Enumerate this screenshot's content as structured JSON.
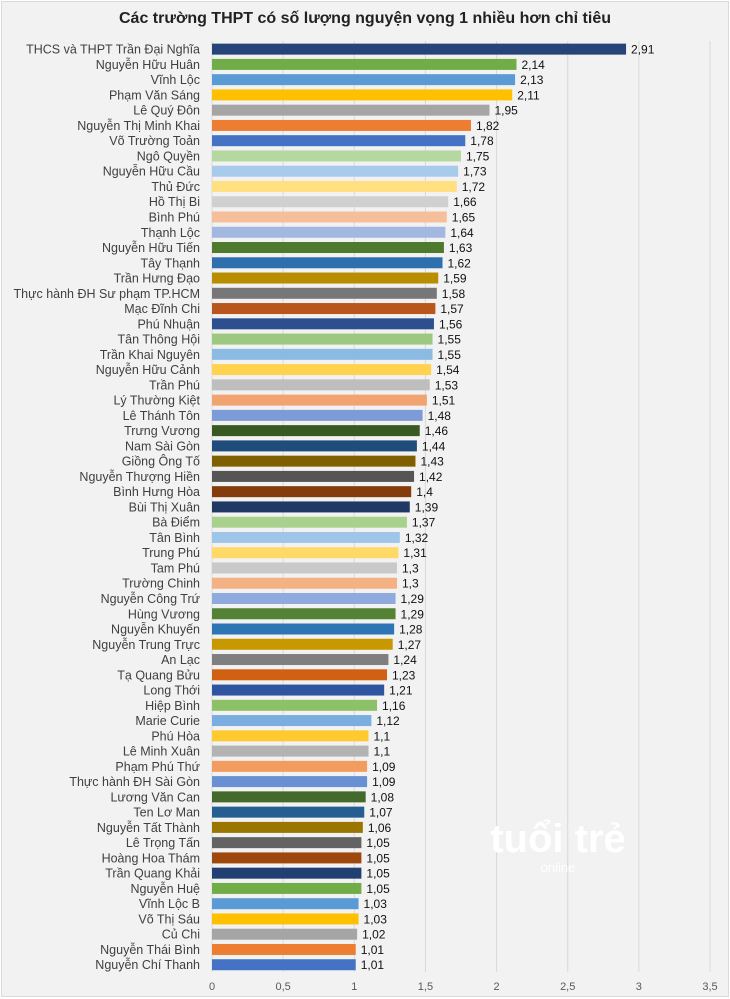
{
  "chart_data": {
    "type": "bar",
    "orientation": "horizontal",
    "title": "Các trường THPT có số lượng nguyện vọng 1 nhiều hơn chỉ tiêu",
    "xlabel": "",
    "ylabel": "",
    "xlim": [
      0,
      3.5
    ],
    "xticks": [
      "0",
      "0,5",
      "1",
      "1,5",
      "2",
      "2,5",
      "3",
      "3,5"
    ],
    "xtick_values": [
      0,
      0.5,
      1,
      1.5,
      2,
      2.5,
      3,
      3.5
    ],
    "grid": "vertical",
    "decimal_separator": ",",
    "categories": [
      "THCS và THPT Trần Đại Nghĩa",
      "Nguyễn Hữu Huân",
      "Vĩnh Lộc",
      "Phạm Văn Sáng",
      "Lê Quý Đôn",
      "Nguyễn Thị Minh Khai",
      "Võ Trường Toản",
      "Ngô Quyền",
      "Nguyễn Hữu Cầu",
      "Thủ Đức",
      "Hồ Thị Bi",
      "Bình Phú",
      "Thạnh Lộc",
      "Nguyễn Hữu Tiến",
      "Tây Thạnh",
      "Trần Hưng Đạo",
      "Thực hành ĐH Sư phạm TP.HCM",
      "Mạc Đĩnh Chi",
      "Phú Nhuận",
      "Tân Thông Hội",
      "Trần Khai Nguyên",
      "Nguyễn Hữu Cảnh",
      "Trần Phú",
      "Lý Thường Kiệt",
      "Lê Thánh Tôn",
      "Trưng Vương",
      "Nam Sài Gòn",
      "Giồng Ông Tố",
      "Nguyễn Thượng Hiền",
      "Bình Hưng Hòa",
      "Bùi Thị Xuân",
      "Bà Điểm",
      "Tân Bình",
      "Trung Phú",
      "Tam Phú",
      "Trường Chinh",
      "Nguyễn Công Trứ",
      "Hùng Vương",
      "Nguyễn Khuyến",
      "Nguyễn Trung Trực",
      "An Lạc",
      "Tạ Quang Bửu",
      "Long Thới",
      "Hiệp Bình",
      "Marie Curie",
      "Phú Hòa",
      "Lê Minh Xuân",
      "Phạm Phú Thứ",
      "Thực hành ĐH Sài Gòn",
      "Lương Văn Can",
      "Ten Lơ Man",
      "Nguyễn Tất Thành",
      "Lê Trọng Tấn",
      "Hoàng Hoa Thám",
      "Trần Quang Khải",
      "Nguyễn Huệ",
      "Vĩnh Lộc B",
      "Võ Thị Sáu",
      "Củ Chi",
      "Nguyễn Thái Bình",
      "Nguyễn Chí Thanh"
    ],
    "values": [
      2.91,
      2.14,
      2.13,
      2.11,
      1.95,
      1.82,
      1.78,
      1.75,
      1.73,
      1.72,
      1.66,
      1.65,
      1.64,
      1.63,
      1.62,
      1.59,
      1.58,
      1.57,
      1.56,
      1.55,
      1.55,
      1.54,
      1.53,
      1.51,
      1.48,
      1.46,
      1.44,
      1.43,
      1.42,
      1.4,
      1.39,
      1.37,
      1.32,
      1.31,
      1.3,
      1.3,
      1.29,
      1.29,
      1.28,
      1.27,
      1.24,
      1.23,
      1.21,
      1.16,
      1.12,
      1.1,
      1.1,
      1.09,
      1.09,
      1.08,
      1.07,
      1.06,
      1.05,
      1.05,
      1.05,
      1.05,
      1.03,
      1.03,
      1.02,
      1.01,
      1.01
    ],
    "value_labels": [
      "2,91",
      "2,14",
      "2,13",
      "2,11",
      "1,95",
      "1,82",
      "1,78",
      "1,75",
      "1,73",
      "1,72",
      "1,66",
      "1,65",
      "1,64",
      "1,63",
      "1,62",
      "1,59",
      "1,58",
      "1,57",
      "1,56",
      "1,55",
      "1,55",
      "1,54",
      "1,53",
      "1,51",
      "1,48",
      "1,46",
      "1,44",
      "1,43",
      "1,42",
      "1,4",
      "1,39",
      "1,37",
      "1,32",
      "1,31",
      "1,3",
      "1,3",
      "1,29",
      "1,29",
      "1,28",
      "1,27",
      "1,24",
      "1,23",
      "1,21",
      "1,16",
      "1,12",
      "1,1",
      "1,1",
      "1,09",
      "1,09",
      "1,08",
      "1,07",
      "1,06",
      "1,05",
      "1,05",
      "1,05",
      "1,05",
      "1,03",
      "1,03",
      "1,02",
      "1,01",
      "1,01"
    ],
    "colors": [
      "#264478",
      "#70ad47",
      "#5b9bd5",
      "#ffc000",
      "#a5a5a5",
      "#ed7d31",
      "#4472c4",
      "#b5d7a0",
      "#a9cbeb",
      "#ffdf80",
      "#d0d0d0",
      "#f6bf9c",
      "#a2b8e1",
      "#4e7a2e",
      "#2e6fae",
      "#b88d00",
      "#777777",
      "#b9561b",
      "#2d4f8f",
      "#9cc97f",
      "#8bbae3",
      "#ffd34f",
      "#bebebe",
      "#f1a46f",
      "#7d9bd6",
      "#385a22",
      "#1f4c7a",
      "#7f5f00",
      "#555555",
      "#843c0c",
      "#203864",
      "#a9d18e",
      "#9fc5e8",
      "#ffd966",
      "#c9c9c9",
      "#f4b183",
      "#8faadc",
      "#548235",
      "#2e75b6",
      "#c89800",
      "#7f7f7f",
      "#d26012",
      "#2f55a0",
      "#8cc168",
      "#7aaee0",
      "#ffca30",
      "#b3b3b3",
      "#f29d5f",
      "#6a90d4",
      "#44692c",
      "#255e91",
      "#9a7500",
      "#636363",
      "#9e480e",
      "#223f73",
      "#70ad47",
      "#5b9bd5",
      "#ffc000",
      "#a5a5a5",
      "#ed7d31",
      "#4472c4"
    ]
  },
  "watermark": {
    "main": "tuổi trẻ",
    "sub": "online"
  }
}
